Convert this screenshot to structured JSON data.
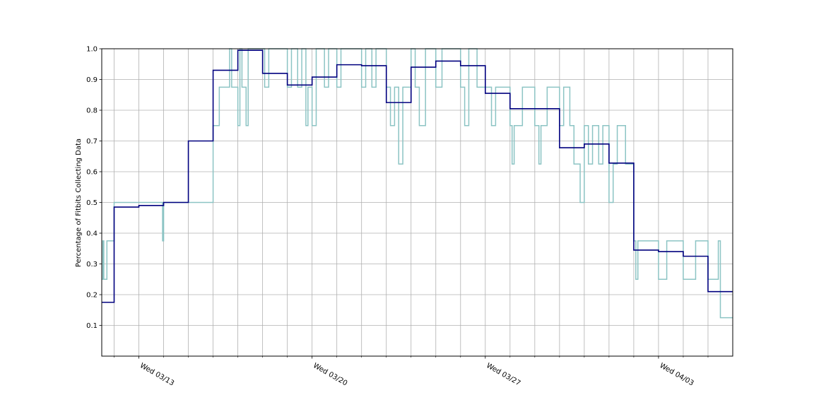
{
  "chart_data": {
    "type": "line",
    "title": "",
    "xlabel": "",
    "ylabel": "Percentage of Fitbits Collecting Data",
    "ylim": [
      0.0,
      1.0
    ],
    "xlim": [
      "2019-03-11 12:00",
      "2019-04-06 00:00"
    ],
    "yticks": [
      0.1,
      0.2,
      0.3,
      0.4,
      0.5,
      0.6,
      0.7,
      0.8,
      0.9,
      1.0
    ],
    "ytick_labels": [
      "0.1",
      "0.2",
      "0.3",
      "0.4",
      "0.5",
      "0.6",
      "0.7",
      "0.8",
      "0.9",
      "1.0"
    ],
    "xticks_major": [
      "2019-03-13",
      "2019-03-20",
      "2019-03-27",
      "2019-04-03"
    ],
    "xtick_labels": [
      "Wed 03/13",
      "Wed 03/20",
      "Wed 03/27",
      "Wed 04/03"
    ],
    "xticks_minor": [
      "2019-03-12",
      "2019-03-14",
      "2019-03-15",
      "2019-03-16",
      "2019-03-17",
      "2019-03-18",
      "2019-03-19",
      "2019-03-21",
      "2019-03-22",
      "2019-03-23",
      "2019-03-24",
      "2019-03-25",
      "2019-03-26",
      "2019-03-28",
      "2019-03-29",
      "2019-03-30",
      "2019-03-31",
      "2019-04-01",
      "2019-04-02",
      "2019-04-04",
      "2019-04-05"
    ],
    "grid": true,
    "legend": "none",
    "colors": {
      "hourly": "#8cc4c4",
      "daily": "#00007f",
      "grid": "#b0b0b0"
    },
    "series": [
      {
        "style": "step",
        "color": "#8cc4c4",
        "points": [
          [
            "2019-03-11 12:00",
            0.25
          ],
          [
            "2019-03-11 13:00",
            0.375
          ],
          [
            "2019-03-11 14:00",
            0.25
          ],
          [
            "2019-03-11 17:00",
            0.375
          ],
          [
            "2019-03-12 00:00",
            0.5
          ],
          [
            "2019-03-13 12:00",
            0.5
          ],
          [
            "2019-03-13 23:00",
            0.375
          ],
          [
            "2019-03-14 00:00",
            0.5
          ],
          [
            "2019-03-16 00:00",
            0.75
          ],
          [
            "2019-03-16 06:00",
            0.875
          ],
          [
            "2019-03-16 16:00",
            1.0
          ],
          [
            "2019-03-16 18:00",
            0.875
          ],
          [
            "2019-03-17 00:00",
            0.75
          ],
          [
            "2019-03-17 02:00",
            1.0
          ],
          [
            "2019-03-17 04:00",
            0.875
          ],
          [
            "2019-03-17 08:00",
            0.75
          ],
          [
            "2019-03-17 10:00",
            1.0
          ],
          [
            "2019-03-18 00:00",
            1.0
          ],
          [
            "2019-03-18 02:00",
            0.875
          ],
          [
            "2019-03-18 06:00",
            1.0
          ],
          [
            "2019-03-19 00:00",
            0.875
          ],
          [
            "2019-03-19 04:00",
            1.0
          ],
          [
            "2019-03-19 10:00",
            0.875
          ],
          [
            "2019-03-19 14:00",
            1.0
          ],
          [
            "2019-03-19 18:00",
            0.75
          ],
          [
            "2019-03-19 20:00",
            0.875
          ],
          [
            "2019-03-20 00:00",
            0.75
          ],
          [
            "2019-03-20 04:00",
            1.0
          ],
          [
            "2019-03-20 12:00",
            0.875
          ],
          [
            "2019-03-20 16:00",
            1.0
          ],
          [
            "2019-03-21 00:00",
            0.875
          ],
          [
            "2019-03-21 04:00",
            1.0
          ],
          [
            "2019-03-22 00:00",
            0.875
          ],
          [
            "2019-03-22 04:00",
            1.0
          ],
          [
            "2019-03-22 10:00",
            0.875
          ],
          [
            "2019-03-22 14:00",
            1.0
          ],
          [
            "2019-03-23 00:00",
            0.875
          ],
          [
            "2019-03-23 04:00",
            0.75
          ],
          [
            "2019-03-23 08:00",
            0.875
          ],
          [
            "2019-03-23 12:00",
            0.625
          ],
          [
            "2019-03-23 16:00",
            0.875
          ],
          [
            "2019-03-24 00:00",
            1.0
          ],
          [
            "2019-03-24 04:00",
            0.875
          ],
          [
            "2019-03-24 08:00",
            0.75
          ],
          [
            "2019-03-24 14:00",
            1.0
          ],
          [
            "2019-03-25 00:00",
            0.875
          ],
          [
            "2019-03-25 06:00",
            1.0
          ],
          [
            "2019-03-26 00:00",
            0.875
          ],
          [
            "2019-03-26 04:00",
            0.75
          ],
          [
            "2019-03-26 08:00",
            1.0
          ],
          [
            "2019-03-26 16:00",
            0.875
          ],
          [
            "2019-03-27 00:00",
            0.875
          ],
          [
            "2019-03-27 06:00",
            0.75
          ],
          [
            "2019-03-27 10:00",
            0.875
          ],
          [
            "2019-03-28 00:00",
            0.75
          ],
          [
            "2019-03-28 02:00",
            0.625
          ],
          [
            "2019-03-28 04:00",
            0.75
          ],
          [
            "2019-03-28 12:00",
            0.875
          ],
          [
            "2019-03-29 00:00",
            0.75
          ],
          [
            "2019-03-29 04:00",
            0.625
          ],
          [
            "2019-03-29 06:00",
            0.75
          ],
          [
            "2019-03-29 12:00",
            0.875
          ],
          [
            "2019-03-30 00:00",
            0.75
          ],
          [
            "2019-03-30 04:00",
            0.875
          ],
          [
            "2019-03-30 10:00",
            0.75
          ],
          [
            "2019-03-30 14:00",
            0.625
          ],
          [
            "2019-03-30 20:00",
            0.5
          ],
          [
            "2019-03-31 00:00",
            0.75
          ],
          [
            "2019-03-31 04:00",
            0.625
          ],
          [
            "2019-03-31 08:00",
            0.75
          ],
          [
            "2019-03-31 14:00",
            0.625
          ],
          [
            "2019-03-31 18:00",
            0.75
          ],
          [
            "2019-04-01 00:00",
            0.5
          ],
          [
            "2019-04-01 04:00",
            0.625
          ],
          [
            "2019-04-01 08:00",
            0.75
          ],
          [
            "2019-04-01 16:00",
            0.625
          ],
          [
            "2019-04-02 00:00",
            0.375
          ],
          [
            "2019-04-02 02:00",
            0.25
          ],
          [
            "2019-04-02 04:00",
            0.375
          ],
          [
            "2019-04-03 00:00",
            0.25
          ],
          [
            "2019-04-03 08:00",
            0.375
          ],
          [
            "2019-04-04 00:00",
            0.25
          ],
          [
            "2019-04-04 12:00",
            0.375
          ],
          [
            "2019-04-05 00:00",
            0.25
          ],
          [
            "2019-04-05 10:00",
            0.375
          ],
          [
            "2019-04-05 12:00",
            0.125
          ],
          [
            "2019-04-06 00:00",
            0.125
          ]
        ]
      },
      {
        "style": "step",
        "color": "#00007f",
        "points": [
          [
            "2019-03-11 12:00",
            0.175
          ],
          [
            "2019-03-12 00:00",
            0.485
          ],
          [
            "2019-03-13 00:00",
            0.49
          ],
          [
            "2019-03-14 00:00",
            0.5
          ],
          [
            "2019-03-15 00:00",
            0.7
          ],
          [
            "2019-03-16 00:00",
            0.93
          ],
          [
            "2019-03-17 00:00",
            0.995
          ],
          [
            "2019-03-18 00:00",
            0.92
          ],
          [
            "2019-03-19 00:00",
            0.882
          ],
          [
            "2019-03-20 00:00",
            0.908
          ],
          [
            "2019-03-21 00:00",
            0.948
          ],
          [
            "2019-03-22 00:00",
            0.945
          ],
          [
            "2019-03-23 00:00",
            0.825
          ],
          [
            "2019-03-24 00:00",
            0.94
          ],
          [
            "2019-03-25 00:00",
            0.96
          ],
          [
            "2019-03-26 00:00",
            0.945
          ],
          [
            "2019-03-27 00:00",
            0.855
          ],
          [
            "2019-03-28 00:00",
            0.805
          ],
          [
            "2019-03-30 00:00",
            0.678
          ],
          [
            "2019-03-31 00:00",
            0.69
          ],
          [
            "2019-04-01 00:00",
            0.628
          ],
          [
            "2019-04-02 00:00",
            0.345
          ],
          [
            "2019-04-03 00:00",
            0.34
          ],
          [
            "2019-04-04 00:00",
            0.325
          ],
          [
            "2019-04-05 00:00",
            0.21
          ],
          [
            "2019-04-06 00:00",
            0.21
          ]
        ]
      }
    ]
  }
}
